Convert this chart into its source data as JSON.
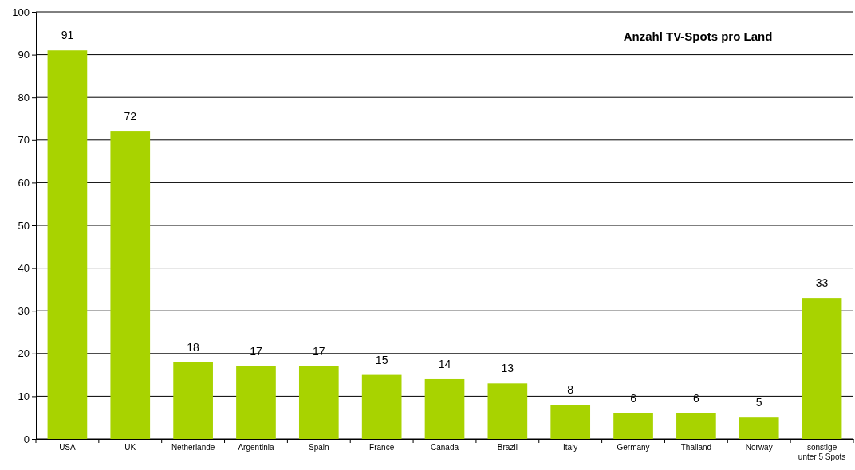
{
  "chart_data": {
    "type": "bar",
    "title": "Anzahl TV-Spots pro Land",
    "categories": [
      "USA",
      "UK",
      "Netherlande",
      "Argentinia",
      "Spain",
      "France",
      "Canada",
      "Brazil",
      "Italy",
      "Germany",
      "Thailand",
      "Norway",
      "sonstige unter 5 Spots"
    ],
    "values": [
      91,
      72,
      18,
      17,
      17,
      15,
      14,
      13,
      8,
      6,
      6,
      5,
      33
    ],
    "color": "#a8d300",
    "ylim": [
      0,
      100
    ],
    "yticks": [
      0,
      10,
      20,
      30,
      40,
      50,
      60,
      70,
      80,
      90,
      100
    ],
    "grid": "y",
    "data_labels": true
  }
}
